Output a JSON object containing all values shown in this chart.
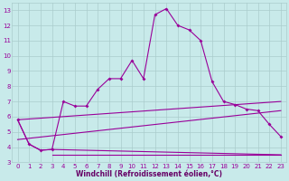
{
  "bg_color": "#c8eaea",
  "line_color": "#990099",
  "grid_color": "#aacccc",
  "xlabel": "Windchill (Refroidissement éolien,°C)",
  "xlabel_color": "#660066",
  "ylim": [
    3,
    13.5
  ],
  "xlim": [
    -0.5,
    23.5
  ],
  "yticks": [
    3,
    4,
    5,
    6,
    7,
    8,
    9,
    10,
    11,
    12,
    13
  ],
  "xticks": [
    0,
    1,
    2,
    3,
    4,
    5,
    6,
    7,
    8,
    9,
    10,
    11,
    12,
    13,
    14,
    15,
    16,
    17,
    18,
    19,
    20,
    21,
    22,
    23
  ],
  "series1_x": [
    0,
    1,
    2,
    3,
    4,
    5,
    6,
    7,
    8,
    9,
    10,
    11,
    12,
    13,
    14,
    15,
    16,
    17,
    18,
    19,
    20,
    21,
    22,
    23
  ],
  "series1_y": [
    5.8,
    4.2,
    3.8,
    3.85,
    7.0,
    6.7,
    6.7,
    7.8,
    8.5,
    8.5,
    9.7,
    8.5,
    12.7,
    13.1,
    12.0,
    11.7,
    11.0,
    8.3,
    7.0,
    6.8,
    6.5,
    6.4,
    5.5,
    4.7
  ],
  "series2_x": [
    0,
    1,
    2,
    3,
    23
  ],
  "series2_y": [
    5.8,
    4.2,
    3.8,
    3.85,
    3.5
  ],
  "series3_x": [
    0,
    23
  ],
  "series3_y": [
    5.8,
    7.0
  ],
  "series4_x": [
    0,
    23
  ],
  "series4_y": [
    4.5,
    6.4
  ],
  "series5_x": [
    3,
    23
  ],
  "series5_y": [
    3.5,
    3.5
  ]
}
